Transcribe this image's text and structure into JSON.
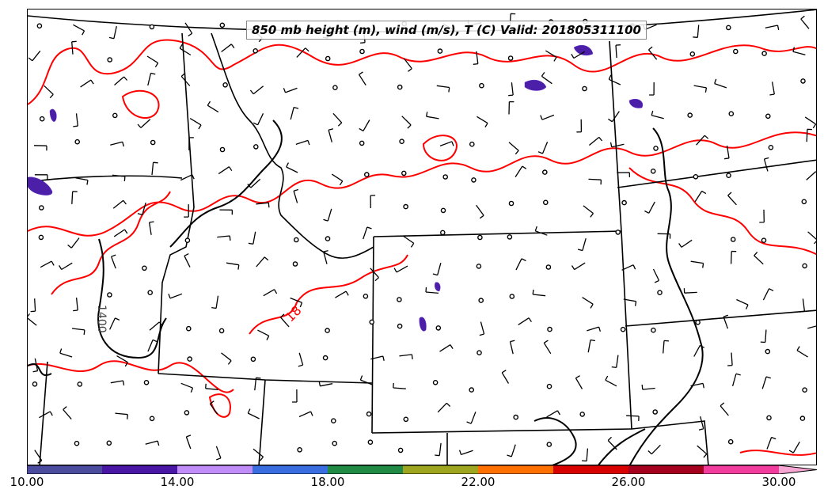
{
  "map": {
    "title": "850 mb height (m), wind (m/s), T (C) Valid: 201805311100",
    "contour_labels": [
      "1400",
      "18"
    ],
    "colors": {
      "temperature_contour": "#ff0000",
      "height_contour": "#000000",
      "borders": "#000000",
      "wind_barbs": "#000000",
      "precip_fill": "#4b1fa8"
    }
  },
  "colorbar": {
    "ticks": [
      "10.00",
      "14.00",
      "18.00",
      "22.00",
      "26.00",
      "30.00"
    ],
    "colors": [
      "#4c4c9e",
      "#4a16a6",
      "#c08cf7",
      "#3a6ee0",
      "#218a45",
      "#9ea61f",
      "#ff7000",
      "#d90000",
      "#a6001f",
      "#f23d9e",
      "#f7a6d4"
    ]
  }
}
